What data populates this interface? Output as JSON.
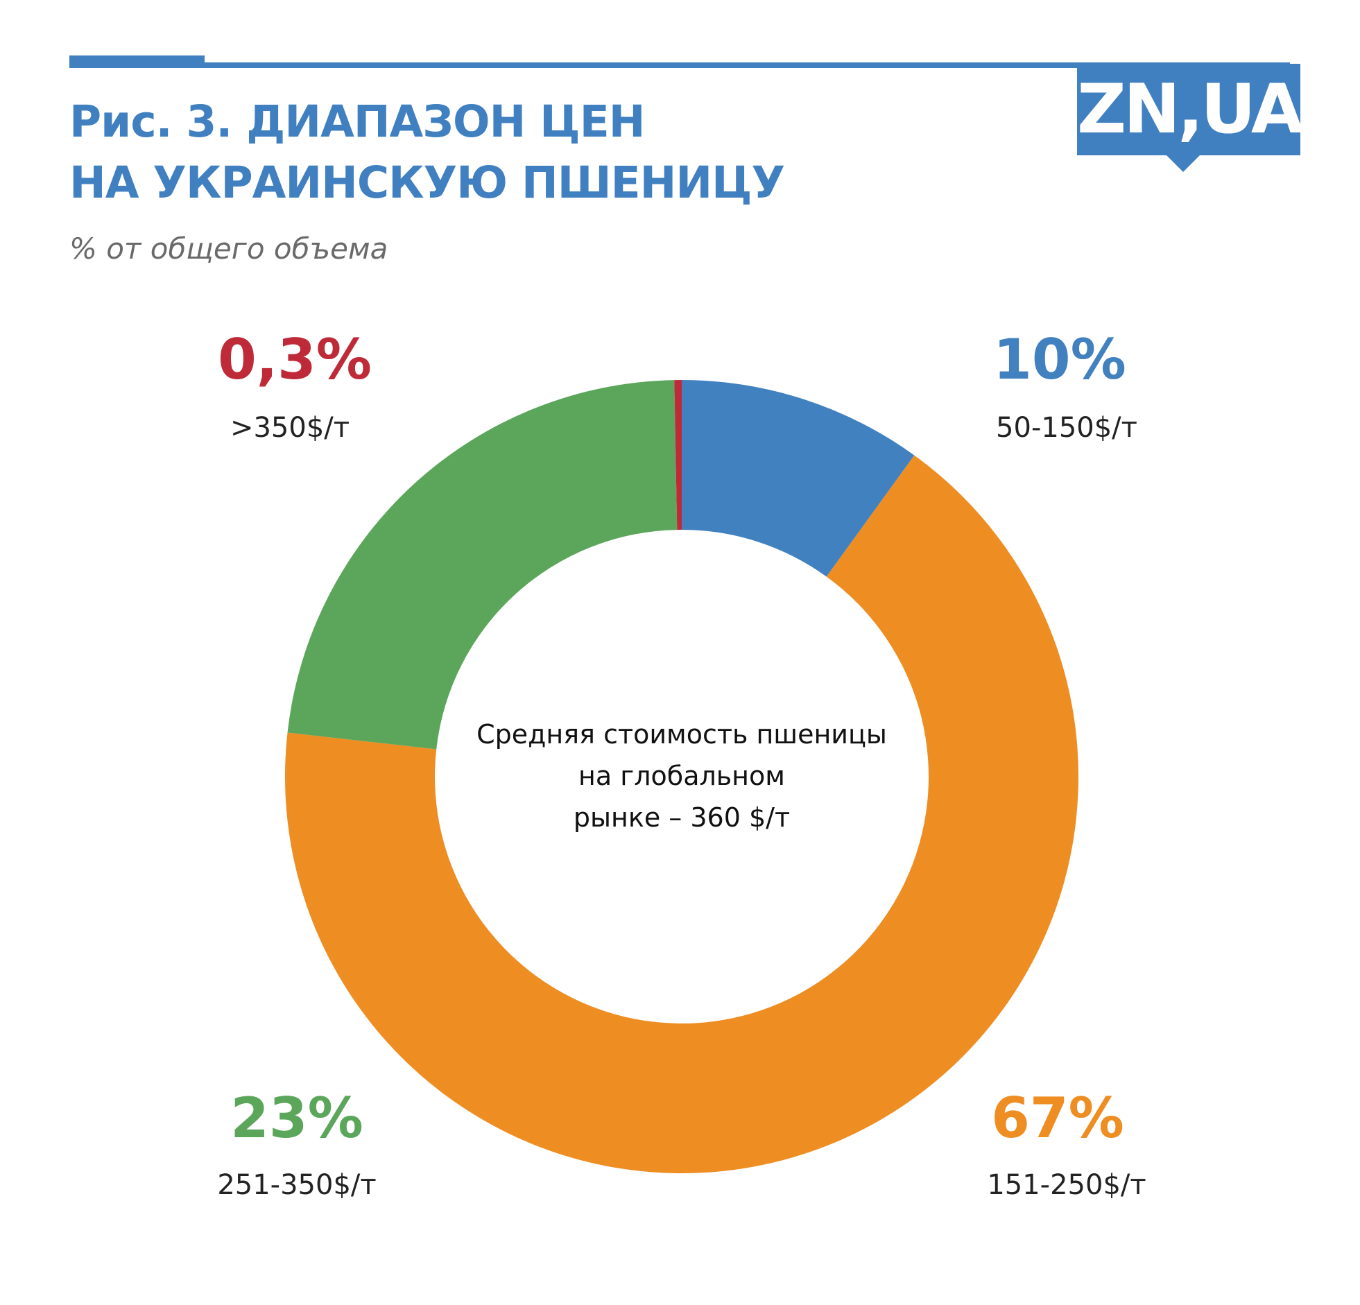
{
  "header": {
    "title_line1": "Рис. 3.  ДИАПАЗОН ЦЕН",
    "title_line2": "НА УКРАИНСКУЮ ПШЕНИЦУ",
    "subtitle": "% от общего объема",
    "logo": "ZN,UA"
  },
  "colors": {
    "accent": "#4180c0"
  },
  "chart_data": {
    "type": "pie",
    "title": "Рис. 3.  ДИАПАЗОН ЦЕН НА УКРАИНСКУЮ ПШЕНИЦУ",
    "subtitle": "% от общего объема",
    "center_text": [
      "Средняя стоимость пшеницы",
      "на глобальном",
      "рынке – 360 $/т"
    ],
    "slices": [
      {
        "label": "50-150$/т",
        "value": 10,
        "display": "10%",
        "color": "#4181c0"
      },
      {
        "label": "151-250$/т",
        "value": 67,
        "display": "67%",
        "color": "#ee8d22"
      },
      {
        "label": "251-350$/т",
        "value": 23,
        "display": "23%",
        "color": "#5ca65c"
      },
      {
        "label": ">350$/т",
        "value": 0.3,
        "display": "0,3%",
        "color": "#be2a38"
      }
    ]
  }
}
